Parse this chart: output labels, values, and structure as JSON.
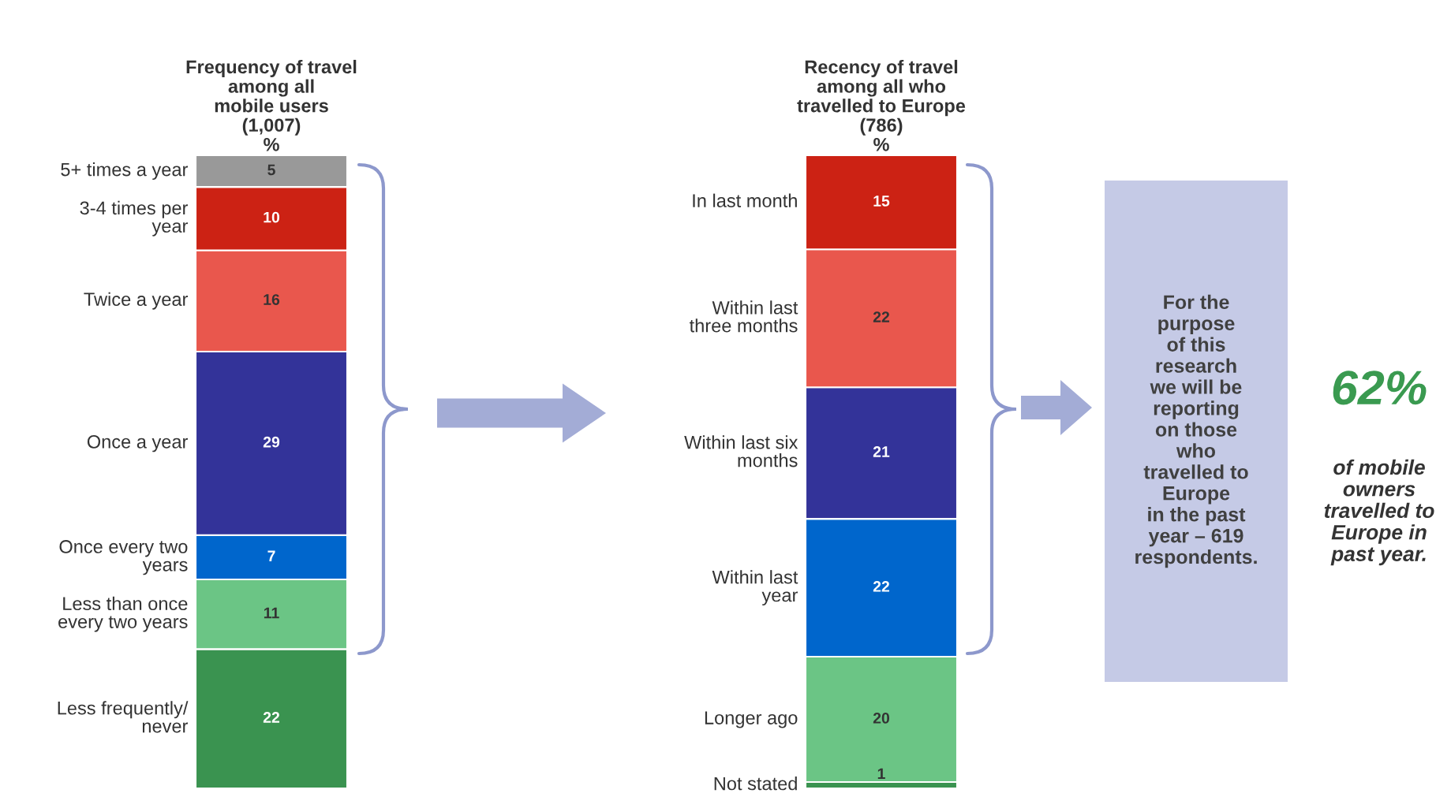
{
  "chart_data": [
    {
      "type": "bar",
      "stacked": true,
      "data_labels": true,
      "tick_labels": false,
      "title": "Frequency of travel\namong all\nmobile users\n(1,007)\n%",
      "categories": [
        null
      ],
      "series": [
        {
          "name": "Less frequently/\nnever",
          "color": "#3a9350",
          "values": [
            22
          ]
        },
        {
          "name": "Less than once\nevery two years",
          "color": "#6bc585",
          "values": [
            11
          ]
        },
        {
          "name": "Once every two\nyears",
          "color": "#0066cc",
          "values": [
            7
          ]
        },
        {
          "name": "Once a year",
          "color": "#333399",
          "values": [
            29
          ]
        },
        {
          "name": "Twice a year",
          "color": "#e9574d",
          "values": [
            16
          ]
        },
        {
          "name": "3-4 times per\nyear",
          "color": "#cc2214",
          "values": [
            10
          ]
        },
        {
          "name": "5+ times a year",
          "color": "#999999",
          "values": [
            5
          ]
        }
      ]
    },
    {
      "type": "bar",
      "stacked": true,
      "data_labels": true,
      "tick_labels": false,
      "title": "Recency of travel\namong all who\ntravelled to Europe\n(786)\n%",
      "categories": [
        null
      ],
      "series": [
        {
          "name": "Not stated",
          "color": "#3a9350",
          "values": [
            1
          ]
        },
        {
          "name": "Longer ago",
          "color": "#6bc585",
          "values": [
            20
          ]
        },
        {
          "name": "Within last\nyear",
          "color": "#0066cc",
          "values": [
            22
          ]
        },
        {
          "name": "Within last six\nmonths",
          "color": "#333399",
          "values": [
            21
          ]
        },
        {
          "name": "Within last\nthree months",
          "color": "#e9574d",
          "values": [
            22
          ]
        },
        {
          "name": "In last month",
          "color": "#cc2214",
          "values": [
            15
          ]
        }
      ]
    },
    {
      "type": "other",
      "annotations": [
        "For the\npurpose\nof this\nresearch\nwe will be\nreporting\non those\nwho\ntravelled to\nEurope\nin the past\nyear – 619\nrespondents.",
        "62%",
        "of mobile\nowners\ntravelled to\nEurope in\npast year."
      ]
    }
  ]
}
